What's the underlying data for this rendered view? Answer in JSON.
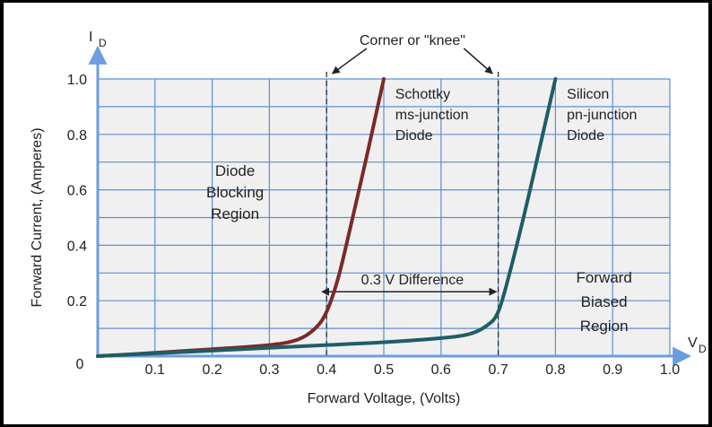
{
  "chart_data": {
    "type": "line",
    "title": "",
    "xlabel": "Forward Voltage, (Volts)",
    "ylabel": "Forward Current, (Amperes)",
    "x_axis_symbol": "V",
    "x_axis_subscript": "D",
    "y_axis_symbol": "I",
    "y_axis_subscript": "D",
    "xlim": [
      0,
      1.0
    ],
    "ylim": [
      0,
      1.0
    ],
    "x_ticks": [
      "0.1",
      "0.2",
      "0.3",
      "0.4",
      "0.5",
      "0.6",
      "0.7",
      "0.8",
      "0.9",
      "1.0"
    ],
    "y_ticks": [
      "0.2",
      "0.4",
      "0.6",
      "0.8",
      "1.0"
    ],
    "origin_label": "0",
    "grid": true,
    "colors": {
      "plot_background": "#f0f0f0",
      "grid": "#5b8fd6",
      "axes": "#6a9ee0",
      "schottky": "#7a2a28",
      "silicon": "#1f5d66",
      "annotation": "#222222"
    },
    "series": [
      {
        "name": "Schottky ms-junction Diode",
        "x": [
          0.0,
          0.1,
          0.2,
          0.3,
          0.35,
          0.38,
          0.4,
          0.42,
          0.44,
          0.47,
          0.5
        ],
        "y": [
          0.0,
          0.012,
          0.025,
          0.04,
          0.06,
          0.1,
          0.16,
          0.28,
          0.45,
          0.72,
          1.0
        ]
      },
      {
        "name": "Silicon pn-junction Diode",
        "x": [
          0.0,
          0.1,
          0.2,
          0.3,
          0.4,
          0.5,
          0.6,
          0.65,
          0.68,
          0.7,
          0.72,
          0.75,
          0.78,
          0.8
        ],
        "y": [
          0.0,
          0.01,
          0.02,
          0.03,
          0.04,
          0.05,
          0.065,
          0.08,
          0.11,
          0.16,
          0.3,
          0.55,
          0.82,
          1.0
        ]
      }
    ],
    "annotations": {
      "knee_label": "Corner or \"knee\"",
      "knee_lines_x": [
        0.4,
        0.7
      ],
      "difference_label": "0.3 V Difference",
      "difference_y": 0.2,
      "schottky_label": [
        "Schottky",
        "ms-junction",
        "Diode"
      ],
      "silicon_label": [
        "Silicon",
        "pn-junction",
        "Diode"
      ],
      "blocking_region": [
        "Diode",
        "Blocking",
        "Region"
      ],
      "forward_region": [
        "Forward",
        "Biased",
        "Region"
      ]
    }
  }
}
